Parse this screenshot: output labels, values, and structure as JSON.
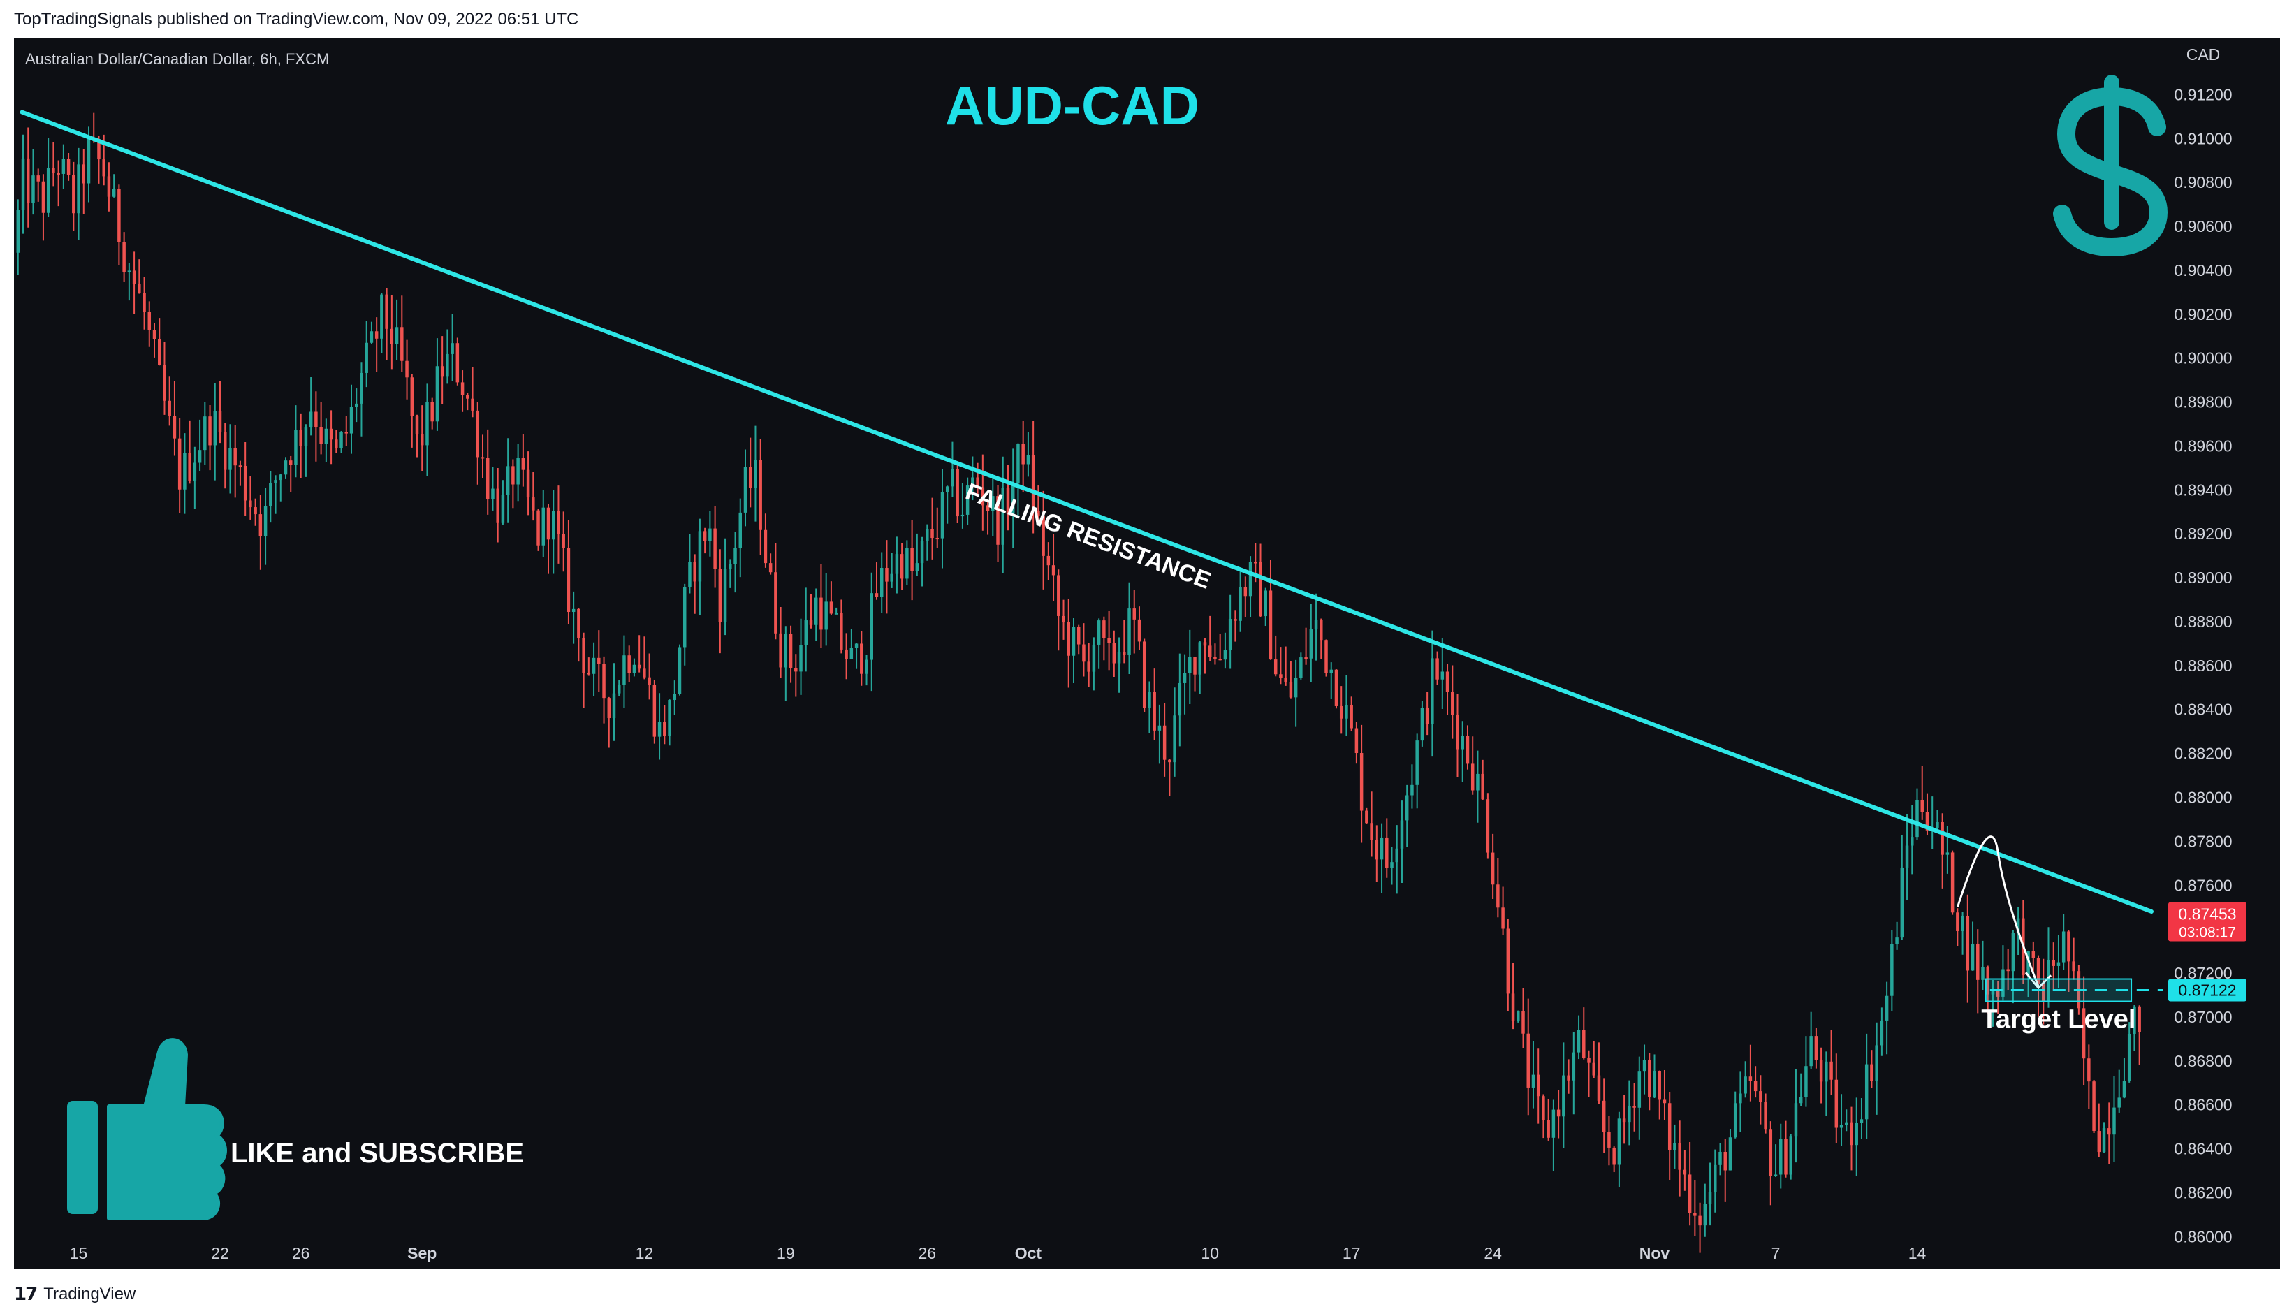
{
  "header": {
    "publish_note": "TopTradingSignals published on TradingView.com, Nov 09, 2022 06:51 UTC",
    "symbol_line": "Australian Dollar/Canadian Dollar, 6h, FXCM"
  },
  "footer": {
    "logo": "17",
    "brand": "TradingView"
  },
  "colors": {
    "background": "#0d0f14",
    "up": "#26a69a",
    "down": "#ef5350",
    "trendline": "#2ee6e6",
    "title": "#1fe0e8",
    "icon": "#17a6a6",
    "price_tag": "#f23645",
    "target_tag": "#1fe0e8"
  },
  "chart_data": {
    "type": "candlestick",
    "title": "AUD-CAD",
    "instrument": "Australian Dollar/Canadian Dollar",
    "timeframe": "6h",
    "source": "FXCM",
    "ylabel": "CAD",
    "ylim": [
      0.8595,
      0.9123
    ],
    "y_ticks": [
      "0.91200",
      "0.91000",
      "0.90800",
      "0.90600",
      "0.90400",
      "0.90200",
      "0.90000",
      "0.89800",
      "0.89600",
      "0.89400",
      "0.89200",
      "0.89000",
      "0.88800",
      "0.88600",
      "0.88400",
      "0.88200",
      "0.88000",
      "0.87800",
      "0.87600",
      "0.87400",
      "0.87200",
      "0.87000",
      "0.86800",
      "0.86600",
      "0.86400",
      "0.86200",
      "0.86000"
    ],
    "x_ticks": [
      {
        "label": "15",
        "day": 0,
        "bold": false
      },
      {
        "label": "22",
        "day": 7,
        "bold": false
      },
      {
        "label": "26",
        "day": 11,
        "bold": false
      },
      {
        "label": "Sep",
        "day": 17,
        "bold": true
      },
      {
        "label": "12",
        "day": 28,
        "bold": false
      },
      {
        "label": "19",
        "day": 35,
        "bold": false
      },
      {
        "label": "26",
        "day": 42,
        "bold": false
      },
      {
        "label": "Oct",
        "day": 47,
        "bold": true
      },
      {
        "label": "10",
        "day": 56,
        "bold": false
      },
      {
        "label": "17",
        "day": 63,
        "bold": false
      },
      {
        "label": "24",
        "day": 70,
        "bold": false
      },
      {
        "label": "Nov",
        "day": 78,
        "bold": true
      },
      {
        "label": "7",
        "day": 84,
        "bold": false
      },
      {
        "label": "14",
        "day": 91,
        "bold": false
      }
    ],
    "x_days_range": [
      -3.2,
      102.6
    ],
    "price_path": [
      [
        -3.0,
        0.9048
      ],
      [
        -2.5,
        0.908
      ],
      [
        -1.5,
        0.9072
      ],
      [
        -0.8,
        0.909
      ],
      [
        0.0,
        0.907
      ],
      [
        0.8,
        0.9095
      ],
      [
        1.5,
        0.9085
      ],
      [
        2.2,
        0.906
      ],
      [
        2.8,
        0.904
      ],
      [
        3.5,
        0.902
      ],
      [
        4.2,
        0.899
      ],
      [
        4.8,
        0.8965
      ],
      [
        5.3,
        0.8945
      ],
      [
        6.0,
        0.8958
      ],
      [
        6.8,
        0.8972
      ],
      [
        7.5,
        0.896
      ],
      [
        8.2,
        0.8948
      ],
      [
        8.8,
        0.8935
      ],
      [
        9.4,
        0.8925
      ],
      [
        10.0,
        0.8945
      ],
      [
        10.6,
        0.8958
      ],
      [
        11.2,
        0.8965
      ],
      [
        11.8,
        0.898
      ],
      [
        12.4,
        0.8962
      ],
      [
        13.0,
        0.8955
      ],
      [
        13.6,
        0.8968
      ],
      [
        14.2,
        0.899
      ],
      [
        14.8,
        0.9005
      ],
      [
        15.3,
        0.902
      ],
      [
        15.8,
        0.901
      ],
      [
        16.4,
        0.899
      ],
      [
        17.0,
        0.896
      ],
      [
        17.6,
        0.8972
      ],
      [
        18.2,
        0.8995
      ],
      [
        18.8,
        0.9
      ],
      [
        19.4,
        0.8985
      ],
      [
        20.0,
        0.8965
      ],
      [
        20.6,
        0.894
      ],
      [
        21.2,
        0.893
      ],
      [
        21.8,
        0.895
      ],
      [
        22.4,
        0.8935
      ],
      [
        23.0,
        0.892
      ],
      [
        23.6,
        0.893
      ],
      [
        24.2,
        0.8905
      ],
      [
        24.8,
        0.888
      ],
      [
        25.4,
        0.886
      ],
      [
        26.0,
        0.885
      ],
      [
        26.6,
        0.8845
      ],
      [
        27.2,
        0.8862
      ],
      [
        27.8,
        0.887
      ],
      [
        28.4,
        0.885
      ],
      [
        29.0,
        0.883
      ],
      [
        29.6,
        0.884
      ],
      [
        30.2,
        0.8885
      ],
      [
        30.8,
        0.891
      ],
      [
        31.4,
        0.8925
      ],
      [
        32.0,
        0.889
      ],
      [
        32.6,
        0.891
      ],
      [
        33.2,
        0.894
      ],
      [
        33.8,
        0.8945
      ],
      [
        34.4,
        0.89
      ],
      [
        35.0,
        0.887
      ],
      [
        35.6,
        0.886
      ],
      [
        36.2,
        0.8875
      ],
      [
        36.8,
        0.889
      ],
      [
        37.4,
        0.888
      ],
      [
        38.0,
        0.887
      ],
      [
        38.6,
        0.886
      ],
      [
        39.2,
        0.887
      ],
      [
        39.8,
        0.8895
      ],
      [
        40.4,
        0.8905
      ],
      [
        41.0,
        0.891
      ],
      [
        41.6,
        0.89
      ],
      [
        42.2,
        0.8915
      ],
      [
        42.8,
        0.8925
      ],
      [
        43.4,
        0.894
      ],
      [
        44.0,
        0.8932
      ],
      [
        44.6,
        0.8945
      ],
      [
        45.2,
        0.8935
      ],
      [
        45.8,
        0.8925
      ],
      [
        46.4,
        0.894
      ],
      [
        47.0,
        0.896
      ],
      [
        47.6,
        0.893
      ],
      [
        48.2,
        0.8905
      ],
      [
        48.8,
        0.888
      ],
      [
        49.4,
        0.887
      ],
      [
        50.0,
        0.886
      ],
      [
        50.6,
        0.8875
      ],
      [
        51.2,
        0.886
      ],
      [
        51.8,
        0.887
      ],
      [
        52.4,
        0.888
      ],
      [
        53.0,
        0.885
      ],
      [
        53.6,
        0.883
      ],
      [
        54.2,
        0.882
      ],
      [
        54.8,
        0.8845
      ],
      [
        55.4,
        0.8865
      ],
      [
        56.0,
        0.8875
      ],
      [
        56.6,
        0.886
      ],
      [
        57.2,
        0.888
      ],
      [
        57.8,
        0.8895
      ],
      [
        58.4,
        0.89
      ],
      [
        59.0,
        0.8885
      ],
      [
        59.6,
        0.8855
      ],
      [
        60.2,
        0.8845
      ],
      [
        60.8,
        0.886
      ],
      [
        61.4,
        0.888
      ],
      [
        62.0,
        0.8865
      ],
      [
        62.6,
        0.885
      ],
      [
        63.2,
        0.883
      ],
      [
        63.8,
        0.88
      ],
      [
        64.4,
        0.878
      ],
      [
        65.0,
        0.877
      ],
      [
        65.6,
        0.879
      ],
      [
        66.2,
        0.881
      ],
      [
        66.8,
        0.8835
      ],
      [
        67.4,
        0.886
      ],
      [
        68.0,
        0.8845
      ],
      [
        68.6,
        0.883
      ],
      [
        69.2,
        0.8815
      ],
      [
        69.8,
        0.8795
      ],
      [
        70.4,
        0.876
      ],
      [
        71.0,
        0.872
      ],
      [
        71.6,
        0.869
      ],
      [
        72.2,
        0.8665
      ],
      [
        72.8,
        0.8645
      ],
      [
        73.4,
        0.866
      ],
      [
        74.0,
        0.8675
      ],
      [
        74.6,
        0.869
      ],
      [
        75.2,
        0.8665
      ],
      [
        75.8,
        0.8645
      ],
      [
        76.4,
        0.864
      ],
      [
        77.0,
        0.866
      ],
      [
        77.6,
        0.868
      ],
      [
        78.2,
        0.867
      ],
      [
        78.8,
        0.865
      ],
      [
        79.4,
        0.8635
      ],
      [
        80.0,
        0.862
      ],
      [
        80.6,
        0.861
      ],
      [
        81.2,
        0.8625
      ],
      [
        81.8,
        0.864
      ],
      [
        82.4,
        0.8655
      ],
      [
        83.0,
        0.867
      ],
      [
        83.6,
        0.865
      ],
      [
        84.2,
        0.863
      ],
      [
        84.8,
        0.864
      ],
      [
        85.4,
        0.8665
      ],
      [
        86.0,
        0.8685
      ],
      [
        86.6,
        0.8675
      ],
      [
        87.2,
        0.8655
      ],
      [
        87.8,
        0.8645
      ],
      [
        88.4,
        0.866
      ],
      [
        89.0,
        0.868
      ],
      [
        89.6,
        0.87
      ],
      [
        90.2,
        0.874
      ],
      [
        90.8,
        0.878
      ],
      [
        91.4,
        0.88
      ],
      [
        92.0,
        0.879
      ],
      [
        92.6,
        0.877
      ],
      [
        93.2,
        0.875
      ],
      [
        93.8,
        0.873
      ],
      [
        94.4,
        0.872
      ],
      [
        95.0,
        0.871
      ],
      [
        95.6,
        0.8725
      ],
      [
        96.2,
        0.874
      ],
      [
        96.8,
        0.872
      ],
      [
        97.4,
        0.871
      ],
      [
        98.0,
        0.8725
      ],
      [
        98.6,
        0.8735
      ],
      [
        99.2,
        0.87
      ],
      [
        99.8,
        0.866
      ],
      [
        100.4,
        0.8645
      ],
      [
        101.0,
        0.8665
      ],
      [
        101.6,
        0.8685
      ],
      [
        102.2,
        0.87
      ]
    ],
    "falling_resistance": {
      "label": "FALLING RESISTANCE",
      "start": [
        -2.8,
        0.9112
      ],
      "end": [
        102.6,
        0.8748
      ]
    },
    "last_price": {
      "value": "0.87453",
      "countdown": "03:08:17"
    },
    "target": {
      "value": "0.87122",
      "label": "Target Level",
      "price": 0.87122
    },
    "projection": {
      "from": [
        93.0,
        0.875
      ],
      "peak": [
        95.0,
        0.8775
      ],
      "to": [
        97.0,
        0.8712
      ]
    },
    "branding": {
      "cta": "LIKE and SUBSCRIBE"
    }
  }
}
